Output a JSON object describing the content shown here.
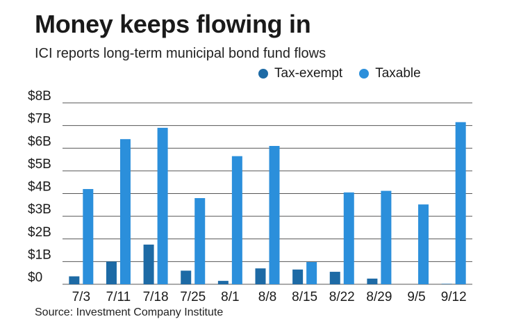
{
  "title": "Money keeps flowing in",
  "subtitle": "ICI reports long-term municipal bond fund flows",
  "source": "Source: Investment Company Institute",
  "colors": {
    "tax_exempt": "#1d6aa5",
    "taxable": "#2b8fdb",
    "grid": "#555555"
  },
  "chart_data": {
    "type": "bar",
    "categories": [
      "7/3",
      "7/11",
      "7/18",
      "7/25",
      "8/1",
      "8/8",
      "8/15",
      "8/22",
      "8/29",
      "9/5",
      "9/12"
    ],
    "series": [
      {
        "name": "Tax-exempt",
        "values": [
          0.35,
          1.0,
          1.75,
          0.6,
          0.15,
          0.7,
          0.65,
          0.55,
          0.25,
          0.0,
          0.02
        ]
      },
      {
        "name": "Taxable",
        "values": [
          4.2,
          6.4,
          6.9,
          3.8,
          5.65,
          6.1,
          0.98,
          4.05,
          4.12,
          3.52,
          7.15
        ]
      }
    ],
    "yticks": [
      "$0",
      "$1B",
      "$2B",
      "$3B",
      "$4B",
      "$5B",
      "$6B",
      "$7B",
      "$8B"
    ],
    "ylim": [
      0,
      8
    ],
    "grid": true,
    "legend": "top-right"
  }
}
